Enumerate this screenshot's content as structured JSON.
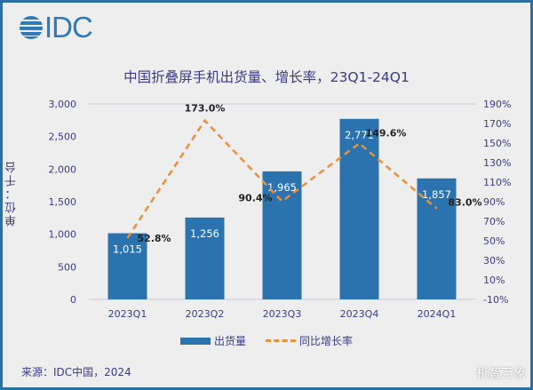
{
  "logo": {
    "text": "IDC"
  },
  "chart_data": {
    "type": "bar+line",
    "title": "中国折叠屏手机出货量、增长率，23Q1-24Q1",
    "ylabel": "单位：千台",
    "categories": [
      "2023Q1",
      "2023Q2",
      "2023Q3",
      "2023Q4",
      "2024Q1"
    ],
    "series": [
      {
        "name": "出货量",
        "type": "bar",
        "axis": "left",
        "color": "#2a73ae",
        "values": [
          1015,
          1256,
          1965,
          2771,
          1857
        ],
        "labels": [
          "1,015",
          "1,256",
          "1,965",
          "2,771",
          "1,857"
        ]
      },
      {
        "name": "同比增长率",
        "type": "line",
        "axis": "right",
        "color": "#e8913a",
        "style": "dashed",
        "values": [
          52.8,
          173.0,
          90.4,
          149.6,
          83.0
        ],
        "labels": [
          "52.8%",
          "173.0%",
          "90.4%",
          "149.6%",
          "83.0%"
        ]
      }
    ],
    "left_axis": {
      "ylim": [
        0,
        3000
      ],
      "ticks": [
        "0",
        "500",
        "1,000",
        "1,500",
        "2,000",
        "2,500",
        "3,000"
      ]
    },
    "right_axis": {
      "ylim": [
        -10,
        190
      ],
      "ticks": [
        "-10%",
        "10%",
        "30%",
        "50%",
        "70%",
        "90%",
        "110%",
        "130%",
        "150%",
        "170%",
        "190%"
      ]
    },
    "legend": "bottom"
  },
  "source": "来源：IDC中国，2024",
  "watermark": "机智万象"
}
